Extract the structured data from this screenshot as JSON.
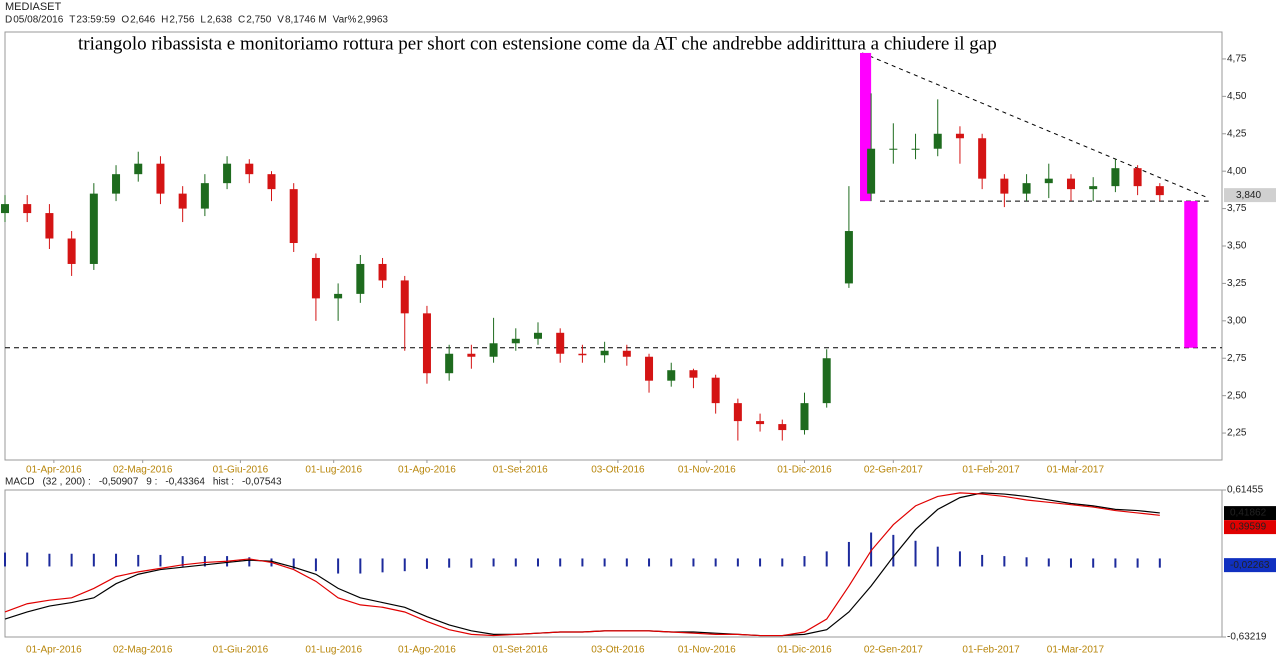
{
  "header": {
    "symbol": "MEDIASET",
    "fields": [
      {
        "key": "D",
        "value": "05/08/2016"
      },
      {
        "key": "T",
        "value": "23:59:59"
      },
      {
        "key": "O",
        "value": "2,646"
      },
      {
        "key": "H",
        "value": "2,756"
      },
      {
        "key": "L",
        "value": "2,638"
      },
      {
        "key": "C",
        "value": "2,750"
      },
      {
        "key": "V",
        "value": "8,1746 M"
      },
      {
        "key": "Var%",
        "value": "2,9963"
      }
    ]
  },
  "chart_data": [
    {
      "type": "candlestick",
      "annotation": "triangolo ribassista e monitoriamo rottura per short con estensione come da AT che andrebbe addirittura a chiudere il gap",
      "x": [
        0,
        5,
        10,
        15,
        20,
        25,
        30,
        35,
        40,
        45,
        50,
        55,
        60,
        65,
        70,
        75,
        80,
        85,
        90,
        95,
        100,
        105,
        110,
        115,
        120,
        125,
        130,
        135,
        140,
        145,
        150,
        155,
        160,
        165,
        170,
        175,
        180,
        185,
        190,
        195,
        200,
        205,
        210,
        215,
        220,
        225,
        230,
        235,
        240,
        245,
        250,
        255,
        260
      ],
      "open": [
        3.72,
        3.78,
        3.72,
        3.55,
        3.38,
        3.85,
        3.98,
        4.05,
        3.85,
        3.75,
        3.92,
        4.05,
        3.98,
        3.88,
        3.42,
        3.15,
        3.18,
        3.38,
        3.27,
        3.05,
        2.65,
        2.78,
        2.76,
        2.85,
        2.88,
        2.92,
        2.78,
        2.77,
        2.8,
        2.76,
        2.6,
        2.67,
        2.62,
        2.45,
        2.33,
        2.31,
        2.27,
        2.45,
        3.25,
        3.85,
        4.15,
        4.15,
        4.15,
        4.25,
        4.22,
        3.95,
        3.85,
        3.92,
        3.95,
        3.88,
        3.9,
        4.02,
        3.9
      ],
      "high": [
        3.84,
        3.84,
        3.78,
        3.6,
        3.92,
        4.04,
        4.13,
        4.1,
        3.9,
        3.98,
        4.1,
        4.08,
        4.0,
        3.92,
        3.45,
        3.25,
        3.44,
        3.42,
        3.3,
        3.1,
        2.84,
        2.84,
        3.02,
        2.95,
        2.99,
        2.95,
        2.84,
        2.86,
        2.84,
        2.78,
        2.72,
        2.68,
        2.64,
        2.48,
        2.38,
        2.34,
        2.52,
        2.81,
        3.9,
        4.52,
        4.32,
        4.25,
        4.48,
        4.3,
        4.25,
        3.98,
        3.98,
        4.05,
        3.98,
        3.96,
        4.08,
        4.04,
        3.92
      ],
      "low": [
        3.66,
        3.66,
        3.48,
        3.3,
        3.34,
        3.8,
        3.93,
        3.78,
        3.66,
        3.7,
        3.88,
        3.92,
        3.8,
        3.46,
        3.0,
        3.0,
        3.12,
        3.22,
        2.8,
        2.58,
        2.6,
        2.68,
        2.72,
        2.8,
        2.84,
        2.72,
        2.72,
        2.72,
        2.7,
        2.52,
        2.56,
        2.55,
        2.38,
        2.2,
        2.26,
        2.2,
        2.24,
        2.42,
        3.22,
        3.8,
        4.05,
        4.08,
        4.1,
        4.05,
        3.88,
        3.76,
        3.8,
        3.82,
        3.8,
        3.8,
        3.86,
        3.84,
        3.8
      ],
      "close": [
        3.78,
        3.72,
        3.55,
        3.38,
        3.85,
        3.98,
        4.05,
        3.85,
        3.75,
        3.92,
        4.05,
        3.98,
        3.88,
        3.52,
        3.15,
        3.18,
        3.38,
        3.27,
        3.05,
        2.65,
        2.78,
        2.76,
        2.85,
        2.88,
        2.92,
        2.78,
        2.77,
        2.8,
        2.76,
        2.6,
        2.67,
        2.62,
        2.45,
        2.33,
        2.31,
        2.27,
        2.45,
        2.75,
        3.6,
        4.15,
        4.15,
        4.15,
        4.25,
        4.22,
        3.95,
        3.85,
        3.92,
        3.95,
        3.88,
        3.9,
        4.02,
        3.9,
        3.84
      ],
      "up_color": "#1e6b1e",
      "down_color": "#d41414",
      "xlim": [
        0,
        274
      ],
      "ylim": [
        2.07,
        4.93
      ],
      "xticks": [
        {
          "value": 11,
          "label": "01-Apr-2016"
        },
        {
          "value": 31,
          "label": "02-Mag-2016"
        },
        {
          "value": 53,
          "label": "01-Giu-2016"
        },
        {
          "value": 74,
          "label": "01-Lug-2016"
        },
        {
          "value": 95,
          "label": "01-Ago-2016"
        },
        {
          "value": 116,
          "label": "01-Set-2016"
        },
        {
          "value": 138,
          "label": "03-Ott-2016"
        },
        {
          "value": 158,
          "label": "01-Nov-2016"
        },
        {
          "value": 180,
          "label": "01-Dic-2016"
        },
        {
          "value": 200,
          "label": "02-Gen-2017"
        },
        {
          "value": 222,
          "label": "01-Feb-2017"
        },
        {
          "value": 241,
          "label": "01-Mar-2017"
        }
      ],
      "yticks": [
        {
          "value": 2.25,
          "label": "2,25"
        },
        {
          "value": 2.5,
          "label": "2,50"
        },
        {
          "value": 2.75,
          "label": "2,75"
        },
        {
          "value": 3,
          "label": "3,00"
        },
        {
          "value": 3.25,
          "label": "3,25"
        },
        {
          "value": 3.5,
          "label": "3,50"
        },
        {
          "value": 3.75,
          "label": "3,75"
        },
        {
          "value": 4,
          "label": "4,00"
        },
        {
          "value": 4.25,
          "label": "4,25"
        },
        {
          "value": 4.5,
          "label": "4,50"
        },
        {
          "value": 4.75,
          "label": "4,75"
        }
      ],
      "last_label": {
        "value": 3.84,
        "label": "3,840"
      },
      "hlines": [
        {
          "y": 2.82,
          "x": [
            0,
            274
          ]
        },
        {
          "y": 3.8,
          "x": [
            197,
            271
          ]
        }
      ],
      "trendline": {
        "x": [
          193,
          271
        ],
        "y": [
          4.79,
          3.82
        ]
      },
      "boxes": [
        {
          "x": [
            192.5,
            195
          ],
          "y": [
            3.8,
            4.79
          ],
          "color": "#ff00ff"
        },
        {
          "x": [
            265.5,
            268.5
          ],
          "y": [
            2.82,
            3.8
          ],
          "color": "#ff00ff"
        }
      ]
    },
    {
      "type": "macd",
      "label": "MACD",
      "params": "(32 , 200) :",
      "macd_value": "-0,50907",
      "signal_label": "9 :",
      "signal_value": "-0,43364",
      "hist_label": "hist :",
      "hist_value": "-0,07543",
      "x": [
        0,
        5,
        10,
        15,
        20,
        25,
        30,
        35,
        40,
        45,
        50,
        55,
        60,
        65,
        70,
        75,
        80,
        85,
        90,
        95,
        100,
        105,
        110,
        115,
        120,
        125,
        130,
        135,
        140,
        145,
        150,
        155,
        160,
        165,
        170,
        175,
        180,
        185,
        190,
        195,
        200,
        205,
        210,
        215,
        220,
        225,
        230,
        235,
        240,
        245,
        250,
        255,
        260
      ],
      "series": [
        {
          "color": "#000000",
          "values": [
            -0.48,
            -0.42,
            -0.37,
            -0.34,
            -0.3,
            -0.18,
            -0.1,
            -0.06,
            -0.04,
            -0.02,
            0.0,
            0.02,
            0.01,
            -0.04,
            -0.1,
            -0.22,
            -0.3,
            -0.34,
            -0.38,
            -0.46,
            -0.53,
            -0.58,
            -0.61,
            -0.61,
            -0.6,
            -0.59,
            -0.59,
            -0.58,
            -0.58,
            -0.58,
            -0.59,
            -0.59,
            -0.6,
            -0.61,
            -0.62,
            -0.62,
            -0.61,
            -0.57,
            -0.42,
            -0.2,
            0.05,
            0.28,
            0.45,
            0.55,
            0.59,
            0.58,
            0.56,
            0.53,
            0.5,
            0.48,
            0.45,
            0.44,
            0.42
          ]
        },
        {
          "color": "#e00000",
          "values": [
            -0.42,
            -0.35,
            -0.32,
            -0.3,
            -0.22,
            -0.12,
            -0.08,
            -0.05,
            -0.02,
            0.0,
            0.01,
            0.03,
            0.0,
            -0.06,
            -0.16,
            -0.3,
            -0.36,
            -0.38,
            -0.42,
            -0.5,
            -0.57,
            -0.61,
            -0.62,
            -0.61,
            -0.6,
            -0.59,
            -0.59,
            -0.58,
            -0.58,
            -0.58,
            -0.59,
            -0.6,
            -0.61,
            -0.61,
            -0.62,
            -0.62,
            -0.59,
            -0.48,
            -0.2,
            0.1,
            0.32,
            0.48,
            0.56,
            0.59,
            0.58,
            0.56,
            0.53,
            0.51,
            0.49,
            0.47,
            0.44,
            0.42,
            0.4
          ]
        }
      ],
      "histogram": {
        "color": "#1c2a9c",
        "values": [
          0.05,
          0.05,
          0.04,
          0.04,
          0.04,
          0.04,
          0.03,
          0.03,
          0.02,
          0.02,
          0.02,
          0.01,
          0.0,
          -0.02,
          -0.04,
          -0.06,
          -0.06,
          -0.05,
          -0.04,
          -0.02,
          -0.01,
          -0.01,
          0.0,
          0.0,
          0.0,
          0.0,
          0.0,
          0.0,
          0.0,
          0.0,
          0.0,
          0.0,
          0.0,
          0.0,
          0.0,
          0.0,
          0.02,
          0.06,
          0.14,
          0.22,
          0.2,
          0.15,
          0.1,
          0.06,
          0.03,
          0.02,
          0.01,
          0.0,
          -0.01,
          -0.01,
          -0.01,
          -0.01,
          -0.01
        ]
      },
      "xlim": [
        0,
        274
      ],
      "ylim": [
        -0.63219,
        0.61455
      ],
      "yticks": [
        {
          "value": 0.61455,
          "label": "0,61455"
        },
        {
          "value": -0.63219,
          "label": "-0,63219"
        }
      ],
      "value_boxes": [
        {
          "value": 0.41862,
          "label": "0,41862",
          "color": "#000000"
        },
        {
          "value": 0.39599,
          "label": "0,39599",
          "color": "#e00000"
        },
        {
          "value": -0.02263,
          "label": "-0,02263",
          "color": "#1030c0"
        }
      ]
    }
  ]
}
